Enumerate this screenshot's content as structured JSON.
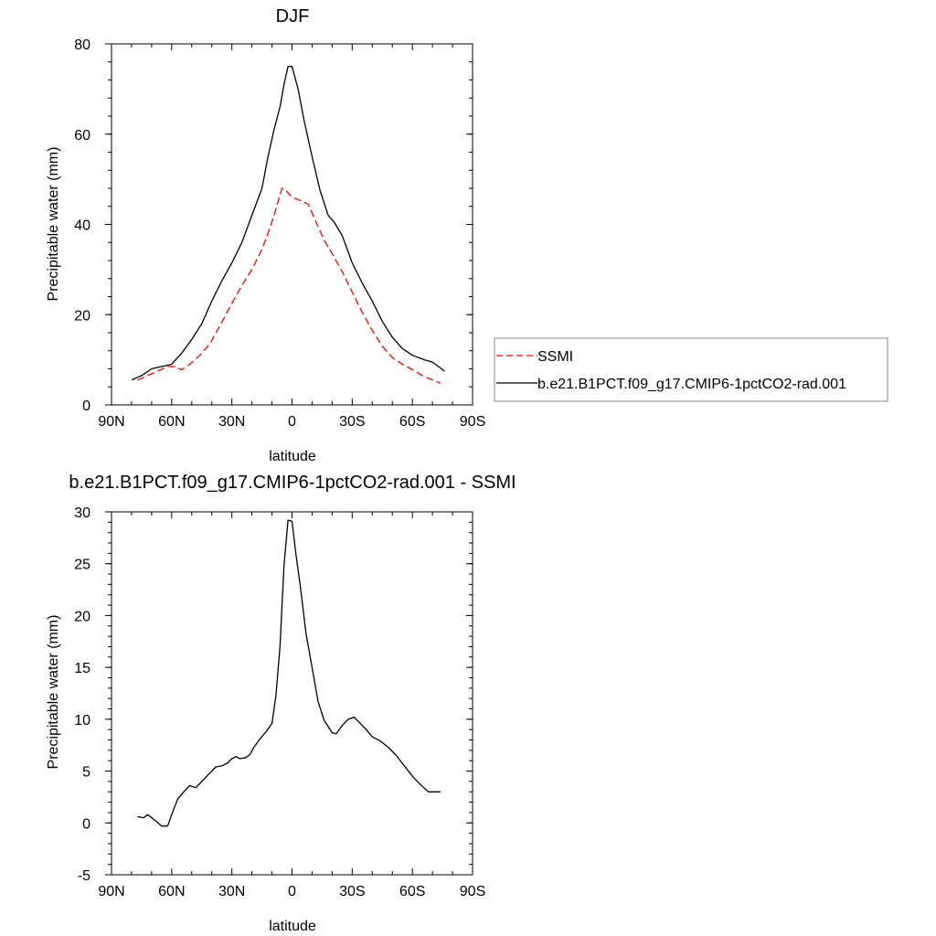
{
  "chart_data": [
    {
      "type": "line",
      "title": "DJF",
      "xlabel": "latitude",
      "ylabel": "Precipitable water (mm)",
      "xlim": [
        90,
        -90
      ],
      "ylim": [
        0,
        80
      ],
      "x_ticks": [
        90,
        60,
        30,
        0,
        -30,
        -60,
        -90
      ],
      "x_tick_labels": [
        "90N",
        "60N",
        "30N",
        "0",
        "30S",
        "60S",
        "90S"
      ],
      "y_ticks": [
        0,
        20,
        40,
        60,
        80
      ],
      "y_tick_labels": [
        "0",
        "20",
        "40",
        "60",
        "80"
      ],
      "legend": {
        "position": "right",
        "entries": [
          {
            "label": "SSMI",
            "color": "#ff0000",
            "dash": "dashed"
          },
          {
            "label": "b.e21.B1PCT.f09_g17.CMIP6-1pctCO2-rad.001",
            "color": "#000000",
            "dash": "solid"
          }
        ]
      },
      "series": [
        {
          "name": "SSMI",
          "color": "#ff0000",
          "dash": "dashed",
          "x": [
            77,
            72,
            67,
            62,
            59,
            55,
            51,
            46,
            41,
            36,
            30,
            25,
            20,
            15,
            12,
            9,
            7,
            5,
            3,
            0,
            -3,
            -8,
            -12,
            -16,
            -20,
            -25,
            -30,
            -35,
            -40,
            -45,
            -50,
            -55,
            -60,
            -65,
            -70,
            -74
          ],
          "y": [
            5.5,
            6.5,
            7.5,
            8.5,
            8.5,
            7.8,
            9.0,
            11.0,
            13.5,
            17.5,
            22.5,
            26.5,
            30.0,
            34.5,
            38.0,
            42.0,
            45.0,
            48.0,
            47.5,
            46.0,
            45.5,
            44.5,
            40.5,
            36.5,
            33.5,
            29.5,
            25.0,
            20.5,
            16.5,
            13.0,
            10.5,
            9.0,
            7.8,
            6.5,
            5.5,
            4.8
          ]
        },
        {
          "name": "b.e21.B1PCT.f09_g17.CMIP6-1pctCO2-rad.001",
          "color": "#000000",
          "dash": "solid",
          "x": [
            80,
            75,
            70,
            65,
            60,
            55,
            50,
            45,
            40,
            35,
            30,
            25,
            20,
            15,
            12,
            9,
            6,
            4,
            2,
            0,
            -3,
            -6,
            -10,
            -14,
            -18,
            -21,
            -25,
            -30,
            -35,
            -40,
            -45,
            -50,
            -55,
            -60,
            -66,
            -70,
            -73,
            -76
          ],
          "y": [
            5.5,
            6.5,
            8.0,
            8.5,
            9.0,
            11.5,
            14.5,
            18.0,
            23.0,
            27.5,
            31.5,
            36.0,
            42.0,
            48.0,
            55.0,
            61.0,
            66.0,
            71.0,
            75.0,
            75.0,
            70.0,
            63.0,
            55.0,
            47.5,
            42.0,
            40.5,
            37.5,
            31.5,
            27.0,
            23.0,
            18.5,
            15.0,
            12.5,
            11.0,
            10.0,
            9.5,
            8.5,
            7.5
          ]
        }
      ]
    },
    {
      "type": "line",
      "title": "b.e21.B1PCT.f09_g17.CMIP6-1pctCO2-rad.001 - SSMI",
      "xlabel": "latitude",
      "ylabel": "Precipitable water (mm)",
      "xlim": [
        90,
        -90
      ],
      "ylim": [
        -5,
        30
      ],
      "x_ticks": [
        90,
        60,
        30,
        0,
        -30,
        -60,
        -90
      ],
      "x_tick_labels": [
        "90N",
        "60N",
        "30N",
        "0",
        "30S",
        "60S",
        "90S"
      ],
      "y_ticks": [
        -5,
        0,
        5,
        10,
        15,
        20,
        25,
        30
      ],
      "y_tick_labels": [
        "-5",
        "0",
        "5",
        "10",
        "15",
        "20",
        "25",
        "30"
      ],
      "series": [
        {
          "name": "b.e21.B1PCT.f09_g17.CMIP6-1pctCO2-rad.001 - SSMI",
          "color": "#000000",
          "dash": "solid",
          "x": [
            77,
            74,
            72,
            68,
            65,
            62,
            60,
            57,
            54,
            51,
            48,
            45,
            42,
            38,
            35,
            32,
            30,
            28,
            26,
            23,
            21,
            19,
            16,
            13,
            10,
            8,
            6,
            4,
            2,
            0,
            -2,
            -4,
            -7,
            -10,
            -13,
            -16,
            -20,
            -22,
            -25,
            -28,
            -31,
            -34,
            -37,
            -40,
            -44,
            -48,
            -52,
            -56,
            -60,
            -64,
            -68,
            -72,
            -74
          ],
          "y": [
            0.6,
            0.5,
            0.8,
            0.2,
            -0.3,
            -0.3,
            0.8,
            2.3,
            3.0,
            3.6,
            3.4,
            4.0,
            4.6,
            5.4,
            5.5,
            5.8,
            6.2,
            6.4,
            6.2,
            6.3,
            6.6,
            7.3,
            8.1,
            8.8,
            9.6,
            12.3,
            17.0,
            24.8,
            29.2,
            29.1,
            25.8,
            23.0,
            18.2,
            15.0,
            11.7,
            9.9,
            8.7,
            8.6,
            9.4,
            10.0,
            10.2,
            9.6,
            9.0,
            8.3,
            7.9,
            7.3,
            6.5,
            5.5,
            4.5,
            3.7,
            3.0,
            3.0,
            3.0
          ]
        }
      ]
    }
  ]
}
